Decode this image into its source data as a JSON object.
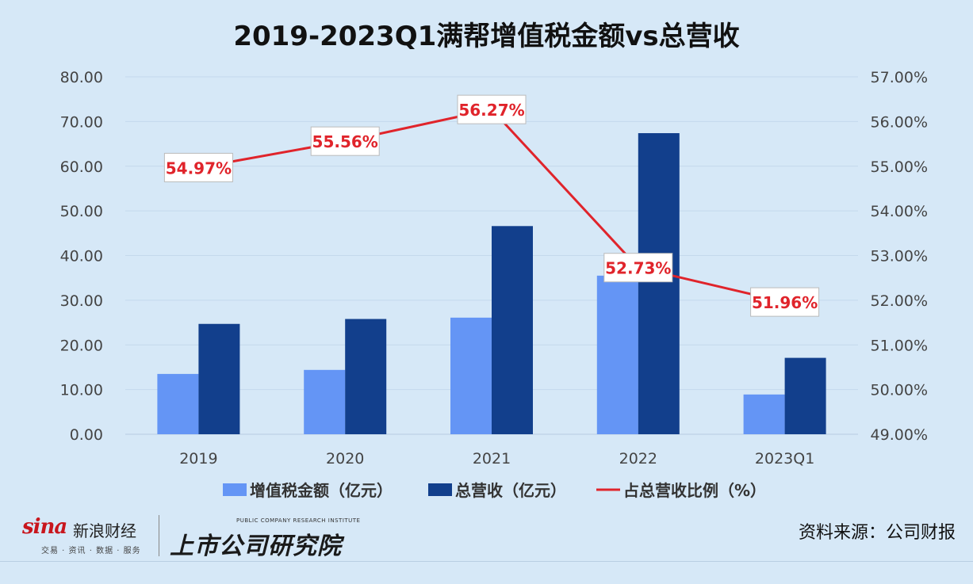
{
  "chart_data": {
    "type": "bar",
    "title": "2019-2023Q1满帮增值税金额vs总营收",
    "categories": [
      "2019",
      "2020",
      "2021",
      "2022",
      "2023Q1"
    ],
    "series": [
      {
        "name": "增值税金额（亿元）",
        "type": "bar",
        "axis": "left",
        "color": "#6495f5",
        "values": [
          13.5,
          14.4,
          26.1,
          35.5,
          8.9
        ]
      },
      {
        "name": "总营收（亿元）",
        "type": "bar",
        "axis": "left",
        "color": "#123f8c",
        "values": [
          24.7,
          25.8,
          46.6,
          67.4,
          17.1
        ]
      },
      {
        "name": "占总营收比例（%）",
        "type": "line",
        "axis": "right",
        "color": "#e0242b",
        "values": [
          54.97,
          55.56,
          56.27,
          52.73,
          51.96
        ],
        "data_labels": [
          "54.97%",
          "55.56%",
          "56.27%",
          "52.73%",
          "51.96%"
        ]
      }
    ],
    "ylim": [
      0,
      80
    ],
    "y_ticks": [
      "0.00",
      "10.00",
      "20.00",
      "30.00",
      "40.00",
      "50.00",
      "60.00",
      "70.00",
      "80.00"
    ],
    "y2lim": [
      49,
      57
    ],
    "y2_ticks": [
      "49.00%",
      "50.00%",
      "51.00%",
      "52.00%",
      "53.00%",
      "54.00%",
      "55.00%",
      "56.00%",
      "57.00%"
    ],
    "grid": true,
    "legend": "bottom"
  },
  "footer": {
    "source": "资料来源：公司财报",
    "sina_logo": "sina",
    "sina_name": "新浪财经",
    "sina_sub": "交易 · 资讯 · 数据 · 服务",
    "research_name": "上市公司研究院",
    "research_tag": "PUBLIC COMPANY RESEARCH INSTITUTE"
  },
  "colors": {
    "background": "#d6e8f7",
    "grid": "#c4d9ec"
  }
}
